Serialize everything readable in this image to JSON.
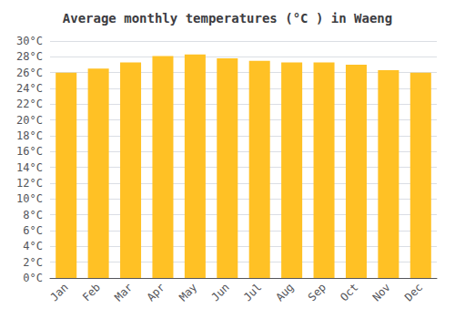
{
  "chart_data": {
    "type": "bar",
    "title": "Average monthly temperatures (°C ) in Waeng",
    "categories": [
      "Jan",
      "Feb",
      "Mar",
      "Apr",
      "May",
      "Jun",
      "Jul",
      "Aug",
      "Sep",
      "Oct",
      "Nov",
      "Dec"
    ],
    "values": [
      26.0,
      26.5,
      27.3,
      28.1,
      28.3,
      27.8,
      27.5,
      27.3,
      27.3,
      27.0,
      26.3,
      26.0
    ],
    "color": "#FFC125",
    "ylim": [
      0,
      30
    ],
    "yticks": [
      {
        "value": 0,
        "label": "0°C"
      },
      {
        "value": 2,
        "label": "2°C"
      },
      {
        "value": 4,
        "label": "4°C"
      },
      {
        "value": 6,
        "label": "6°C"
      },
      {
        "value": 8,
        "label": "8°C"
      },
      {
        "value": 10,
        "label": "10°C"
      },
      {
        "value": 12,
        "label": "12°C"
      },
      {
        "value": 14,
        "label": "14°C"
      },
      {
        "value": 16,
        "label": "16°C"
      },
      {
        "value": 18,
        "label": "18°C"
      },
      {
        "value": 20,
        "label": "20°C"
      },
      {
        "value": 22,
        "label": "22°C"
      },
      {
        "value": 24,
        "label": "24°C"
      },
      {
        "value": 26,
        "label": "26°C"
      },
      {
        "value": 28,
        "label": "28°C"
      },
      {
        "value": 30,
        "label": "30°C"
      }
    ],
    "grid": true
  }
}
